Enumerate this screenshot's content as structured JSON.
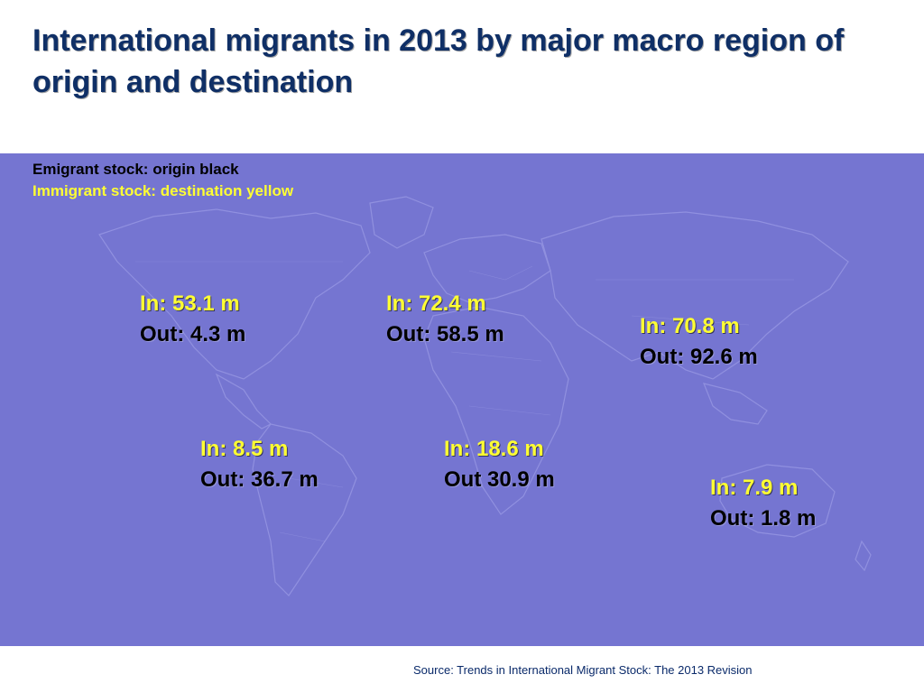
{
  "colors": {
    "title": "#0f2f66",
    "map_background": "#7575d1",
    "map_lines": "#9a9ae4",
    "origin_text": "#000000",
    "destination_text": "#ffff33",
    "source_text": "#0a2a6a"
  },
  "title": "International migrants in 2013 by major macro region of origin and destination",
  "legend": {
    "emigrant": "Emigrant stock: origin black",
    "immigrant": "Immigrant stock:  destination yellow"
  },
  "regions": [
    {
      "in": "In: 53.1 m",
      "out": "Out: 4.3 m"
    },
    {
      "in": "In: 72.4 m",
      "out": "Out: 58.5 m"
    },
    {
      "in": "In: 70.8 m",
      "out": "Out: 92.6 m"
    },
    {
      "in": "In: 8.5 m",
      "out": "Out: 36.7 m"
    },
    {
      "in": "In: 18.6 m",
      "out": "Out 30.9 m"
    },
    {
      "in": "In: 7.9 m",
      "out": "Out: 1.8 m"
    }
  ],
  "source": "Source: Trends in International Migrant Stock: The 2013 Revision"
}
